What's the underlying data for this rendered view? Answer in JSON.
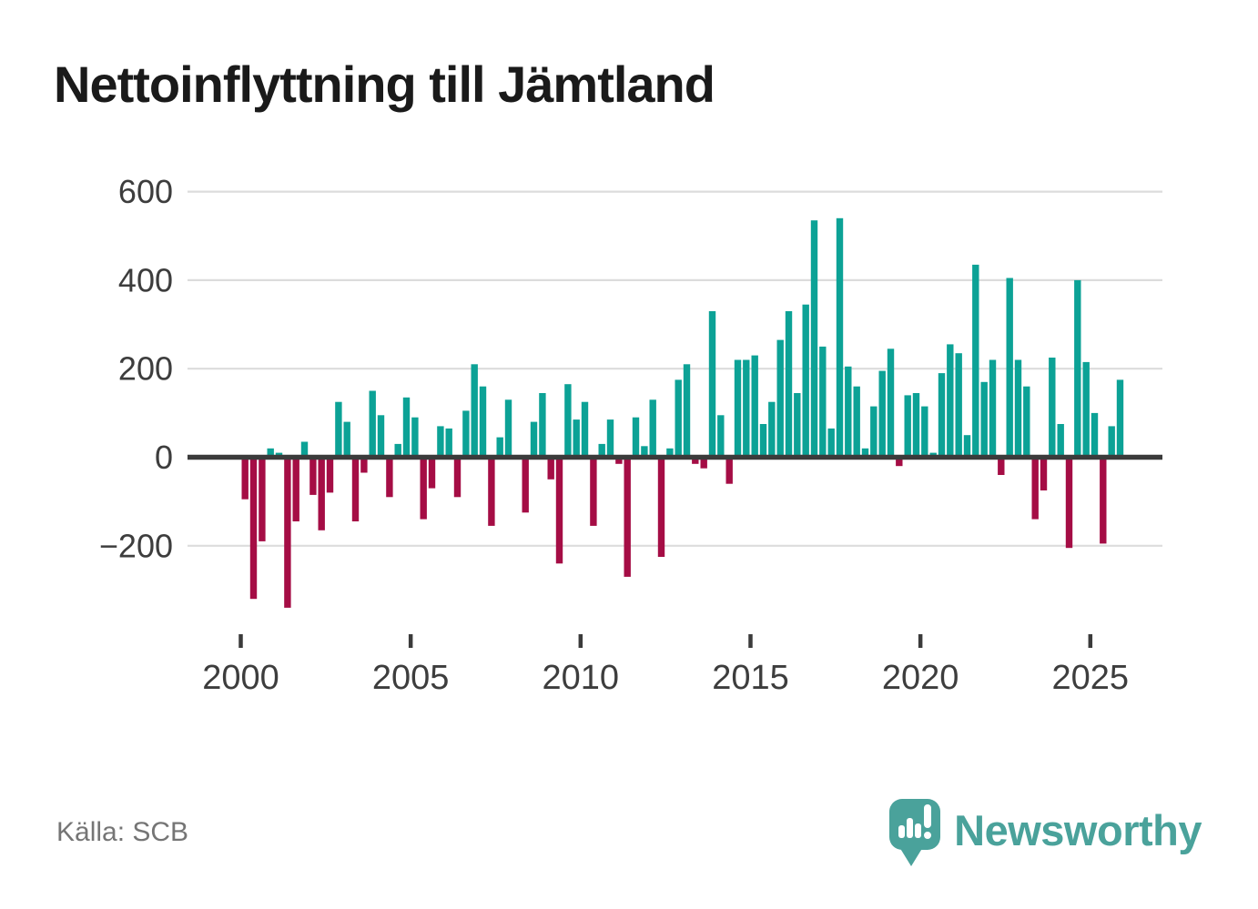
{
  "title": "Nettoinflyttning till Jämtland",
  "source": "Källa: SCB",
  "brand": {
    "name": "Newsworthy"
  },
  "colors": {
    "positive": "#0CA296",
    "negative": "#A50D45",
    "grid": "#DCDCDC",
    "axis_line": "#3B3B3B",
    "tick_label": "#3D3D3D",
    "title": "#1A1A1A",
    "source": "#757575",
    "brand": "#4AA29B",
    "background": "#FFFFFF"
  },
  "chart_data": {
    "type": "bar",
    "title": "Nettoinflyttning till Jämtland",
    "xlabel": "",
    "ylabel": "",
    "unit": "net migration per quarter",
    "ylim": [
      -400,
      620
    ],
    "yticks": [
      600,
      400,
      200,
      0,
      -200
    ],
    "xticks": [
      2000,
      2005,
      2010,
      2015,
      2020,
      2025
    ],
    "grid": "horizontal",
    "legend": "none",
    "start_year": 2000,
    "quarters_per_year": 4,
    "years": [
      {
        "year": 2000,
        "q": [
          -95,
          -320,
          -190,
          20
        ]
      },
      {
        "year": 2001,
        "q": [
          10,
          -340,
          -145,
          35
        ]
      },
      {
        "year": 2002,
        "q": [
          -85,
          -165,
          -80,
          125
        ]
      },
      {
        "year": 2003,
        "q": [
          80,
          -145,
          -35,
          150
        ]
      },
      {
        "year": 2004,
        "q": [
          95,
          -90,
          30,
          135
        ]
      },
      {
        "year": 2005,
        "q": [
          90,
          -140,
          -70,
          70
        ]
      },
      {
        "year": 2006,
        "q": [
          65,
          -90,
          105,
          210
        ]
      },
      {
        "year": 2007,
        "q": [
          160,
          -155,
          45,
          130
        ]
      },
      {
        "year": 2008,
        "q": [
          0,
          -125,
          80,
          145
        ]
      },
      {
        "year": 2009,
        "q": [
          -50,
          -240,
          165,
          85
        ]
      },
      {
        "year": 2010,
        "q": [
          125,
          -155,
          30,
          85
        ]
      },
      {
        "year": 2011,
        "q": [
          -15,
          -270,
          90,
          25
        ]
      },
      {
        "year": 2012,
        "q": [
          130,
          -225,
          20,
          175
        ]
      },
      {
        "year": 2013,
        "q": [
          210,
          -15,
          -25,
          330
        ]
      },
      {
        "year": 2014,
        "q": [
          95,
          -60,
          220,
          220
        ]
      },
      {
        "year": 2015,
        "q": [
          230,
          75,
          125,
          265
        ]
      },
      {
        "year": 2016,
        "q": [
          330,
          145,
          345,
          535
        ]
      },
      {
        "year": 2017,
        "q": [
          250,
          65,
          540,
          205
        ]
      },
      {
        "year": 2018,
        "q": [
          160,
          20,
          115,
          195
        ]
      },
      {
        "year": 2019,
        "q": [
          245,
          -20,
          140,
          145
        ]
      },
      {
        "year": 2020,
        "q": [
          115,
          10,
          190,
          255
        ]
      },
      {
        "year": 2021,
        "q": [
          235,
          50,
          435,
          170
        ]
      },
      {
        "year": 2022,
        "q": [
          220,
          -40,
          405,
          220
        ]
      },
      {
        "year": 2023,
        "q": [
          160,
          -140,
          -75,
          225
        ]
      },
      {
        "year": 2024,
        "q": [
          75,
          -205,
          400,
          215
        ]
      },
      {
        "year": 2025,
        "q": [
          100,
          -195,
          70,
          175
        ]
      }
    ]
  }
}
